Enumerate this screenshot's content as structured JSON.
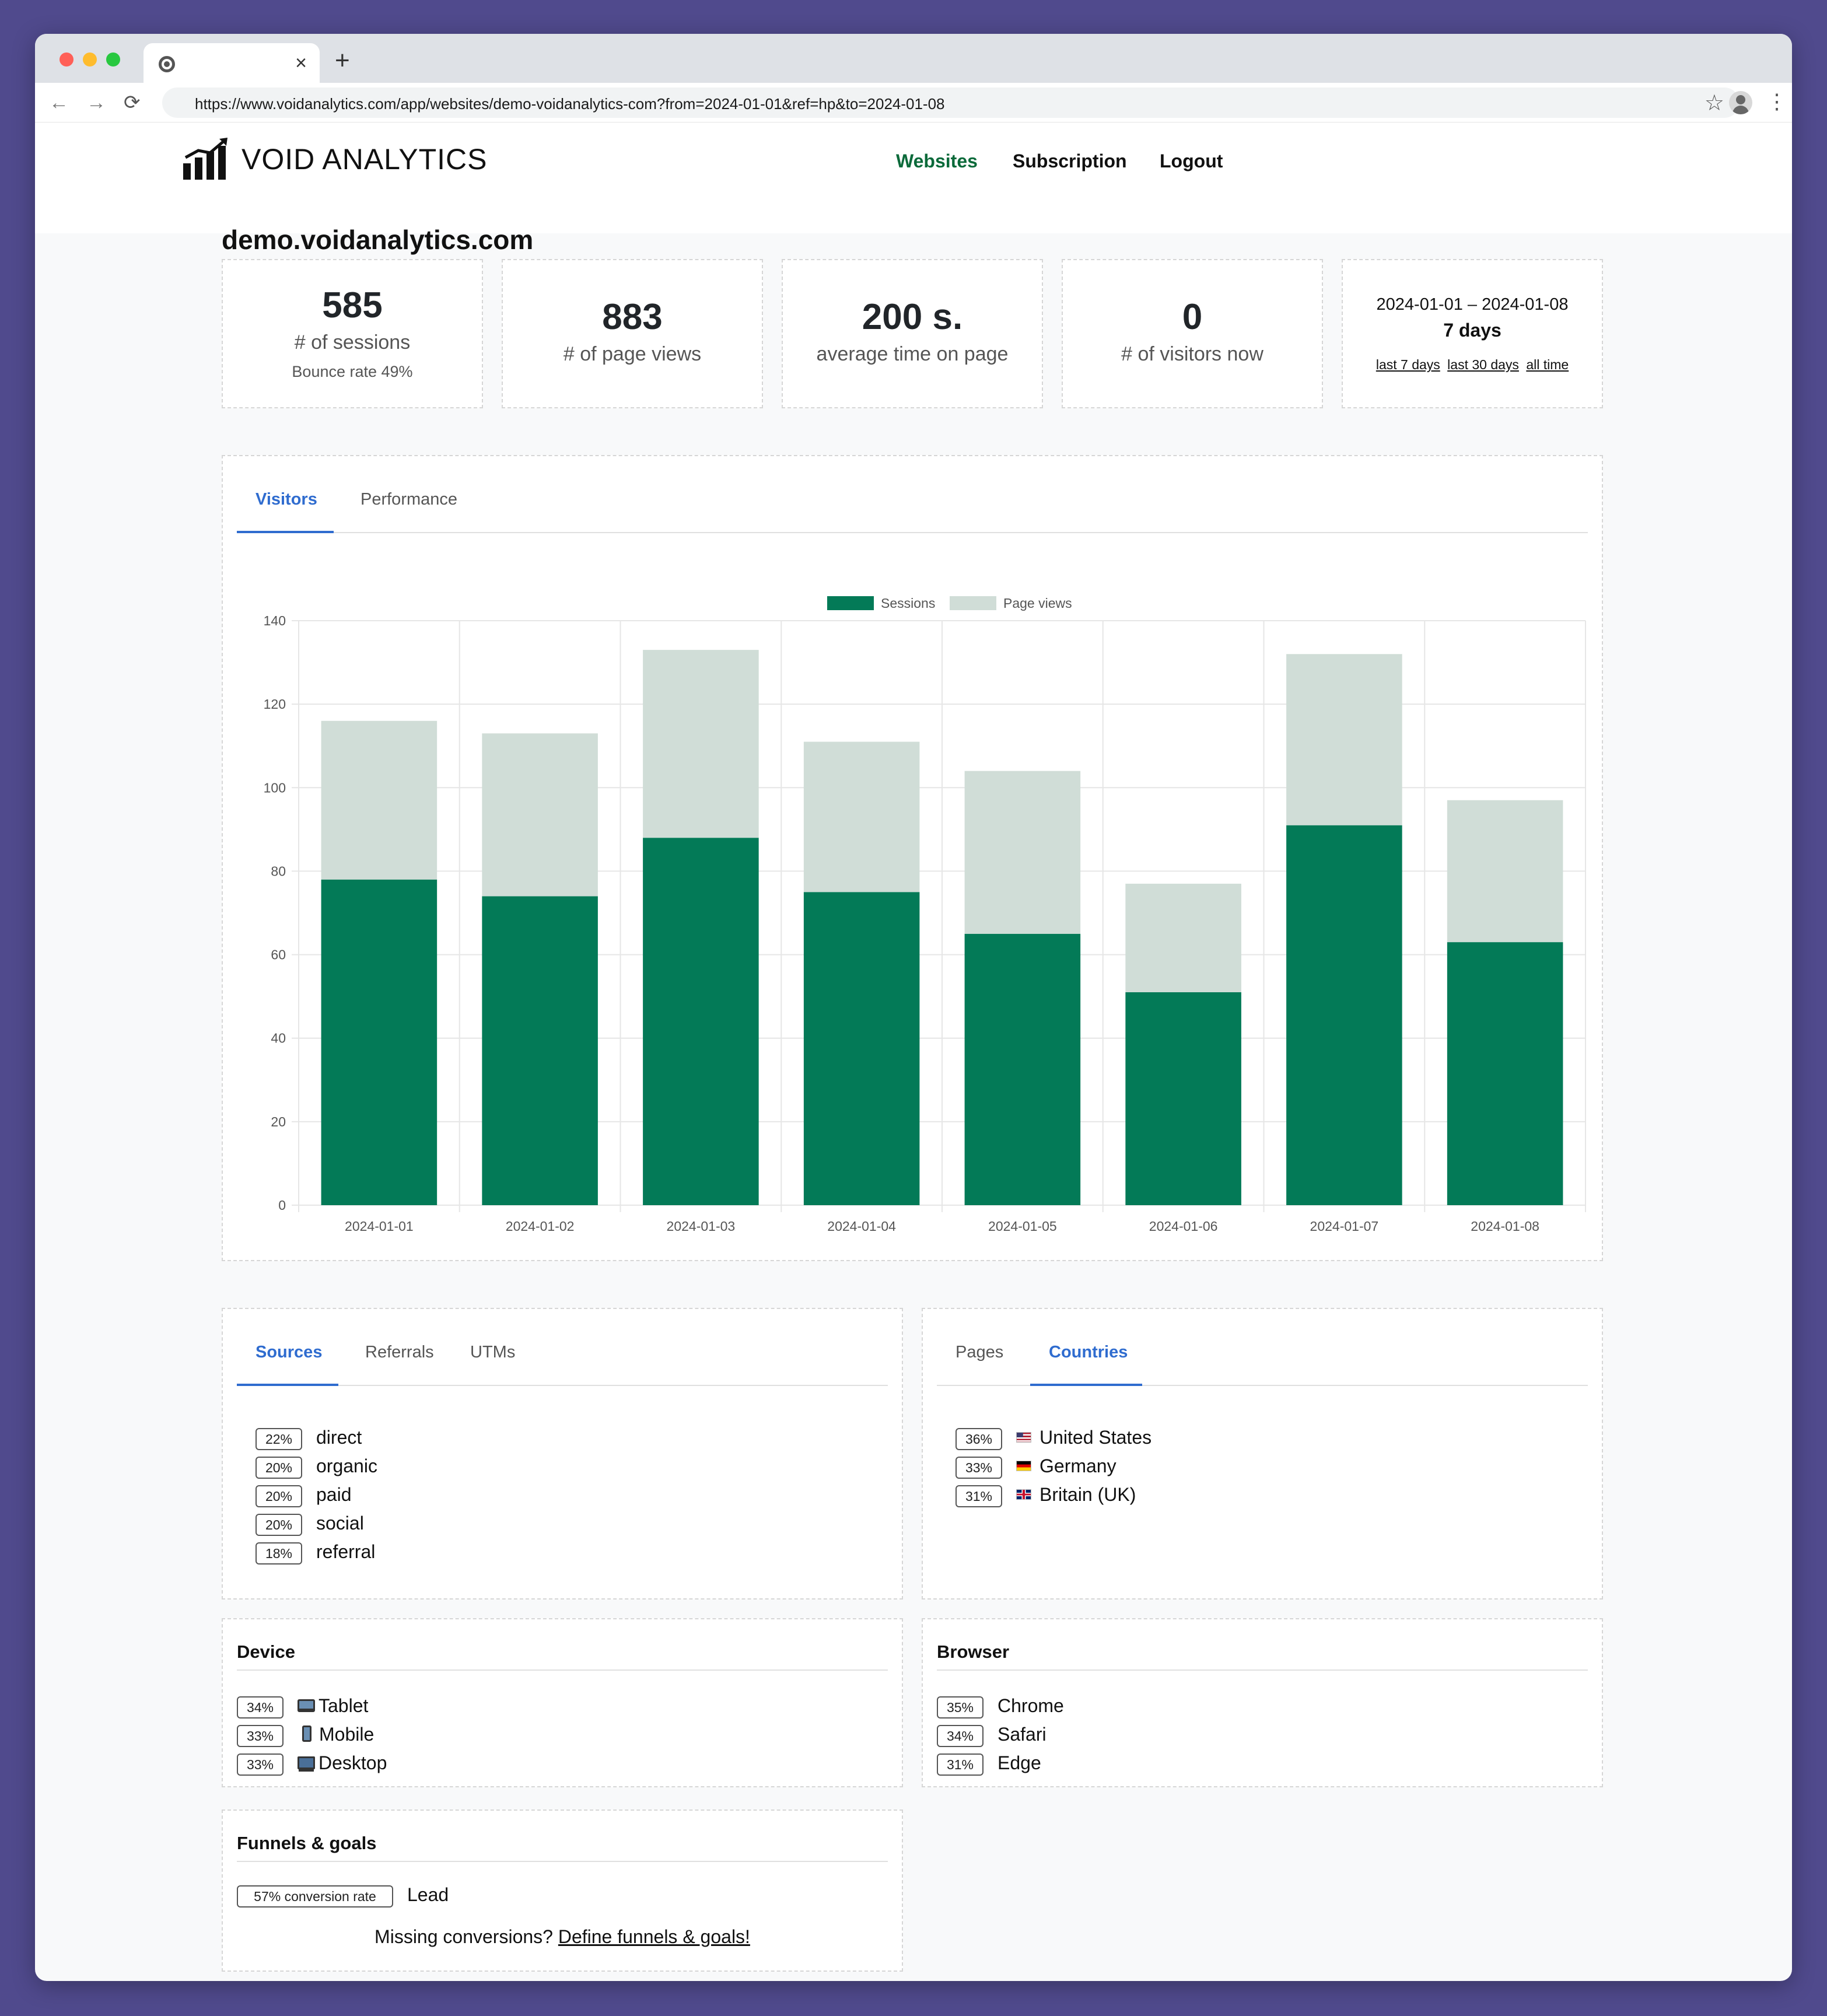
{
  "browser": {
    "url": "https://www.voidanalytics.com/app/websites/demo-voidanalytics-com?from=2024-01-01&ref=hp&to=2024-01-08",
    "close_glyph": "×",
    "new_tab_glyph": "+",
    "back_glyph": "←",
    "forward_glyph": "→",
    "reload_glyph": "⟳",
    "star_glyph": "☆",
    "menu_glyph": "⋮"
  },
  "header": {
    "brand": "VOID ANALYTICS",
    "nav": {
      "websites": "Websites",
      "subscription": "Subscription",
      "logout": "Logout"
    },
    "active_color": "#0b6a3a"
  },
  "site": {
    "title": "demo.voidanalytics.com"
  },
  "stats": {
    "sessions": {
      "value": "585",
      "label": "# of sessions",
      "sub": "Bounce rate 49%"
    },
    "pageviews": {
      "value": "883",
      "label": "# of page views"
    },
    "time": {
      "value": "200 s.",
      "label": "average time on page"
    },
    "visitors": {
      "value": "0",
      "label": "# of visitors now"
    },
    "range": {
      "dates": "2024-01-01 – 2024-01-08",
      "days": "7 days",
      "last7": "last 7 days",
      "last30": "last 30 days",
      "alltime": "all time"
    }
  },
  "chart_tabs": {
    "visitors": "Visitors",
    "performance": "Performance"
  },
  "chart_data": {
    "type": "bar",
    "stacked": true,
    "categories": [
      "2024-01-01",
      "2024-01-02",
      "2024-01-03",
      "2024-01-04",
      "2024-01-05",
      "2024-01-06",
      "2024-01-07",
      "2024-01-08"
    ],
    "series": [
      {
        "name": "Sessions",
        "color": "#037a57",
        "values": [
          78,
          74,
          88,
          75,
          65,
          51,
          91,
          63
        ]
      },
      {
        "name": "Page views",
        "color": "#d0ddd7",
        "values": [
          38,
          39,
          45,
          36,
          39,
          26,
          41,
          34
        ]
      }
    ],
    "ylim": [
      0,
      140
    ],
    "yticks": [
      "0",
      "20",
      "40",
      "60",
      "80",
      "100",
      "120",
      "140"
    ],
    "legend": "top",
    "grid": true
  },
  "sources": {
    "tabs": {
      "sources": "Sources",
      "referrals": "Referrals",
      "utms": "UTMs"
    },
    "items": [
      {
        "pct": "22%",
        "label": "direct"
      },
      {
        "pct": "20%",
        "label": "organic"
      },
      {
        "pct": "20%",
        "label": "paid"
      },
      {
        "pct": "20%",
        "label": "social"
      },
      {
        "pct": "18%",
        "label": "referral"
      }
    ]
  },
  "countries": {
    "tabs": {
      "pages": "Pages",
      "countries": "Countries"
    },
    "items": [
      {
        "pct": "36%",
        "label": "United States",
        "flag": "us-flag-icon"
      },
      {
        "pct": "33%",
        "label": "Germany",
        "flag": "de-flag-icon"
      },
      {
        "pct": "31%",
        "label": "Britain (UK)",
        "flag": "uk-flag-icon"
      }
    ]
  },
  "device": {
    "title": "Device",
    "items": [
      {
        "pct": "34%",
        "label": "Tablet",
        "icon": "laptop-icon"
      },
      {
        "pct": "33%",
        "label": "Mobile",
        "icon": "mobile-phone-icon"
      },
      {
        "pct": "33%",
        "label": "Desktop",
        "icon": "desktop-monitor-icon"
      }
    ]
  },
  "browserstats": {
    "title": "Browser",
    "items": [
      {
        "pct": "35%",
        "label": "Chrome"
      },
      {
        "pct": "34%",
        "label": "Safari"
      },
      {
        "pct": "31%",
        "label": "Edge"
      }
    ]
  },
  "funnels": {
    "title": "Funnels & goals",
    "badge": "57% conversion rate",
    "goal": "Lead",
    "missing": "Missing conversions?",
    "define_link": "Define funnels & goals!"
  }
}
